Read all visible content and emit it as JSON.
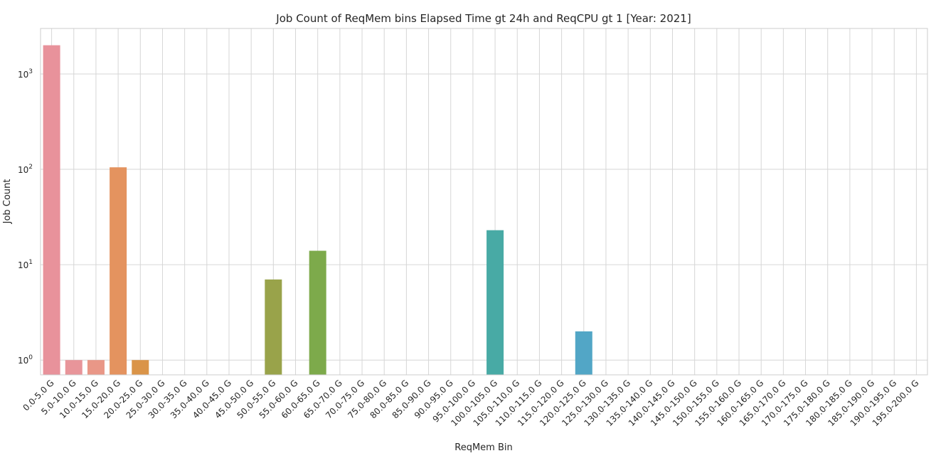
{
  "chart_data": {
    "type": "bar",
    "title": "Job Count of ReqMem bins Elapsed Time gt 24h and ReqCPU gt 1 [Year: 2021]",
    "xlabel": "ReqMem Bin",
    "ylabel": "Job Count",
    "yscale": "log",
    "ylim": [
      0.7,
      3000
    ],
    "yticks": [
      {
        "value": 1,
        "base": "10",
        "exp": "0"
      },
      {
        "value": 10,
        "base": "10",
        "exp": "1"
      },
      {
        "value": 100,
        "base": "10",
        "exp": "2"
      },
      {
        "value": 1000,
        "base": "10",
        "exp": "3"
      }
    ],
    "grid": true,
    "categories": [
      "0.0-5.0 G",
      "5.0-10.0 G",
      "10.0-15.0 G",
      "15.0-20.0 G",
      "20.0-25.0 G",
      "25.0-30.0 G",
      "30.0-35.0 G",
      "35.0-40.0 G",
      "40.0-45.0 G",
      "45.0-50.0 G",
      "50.0-55.0 G",
      "55.0-60.0 G",
      "60.0-65.0 G",
      "65.0-70.0 G",
      "70.0-75.0 G",
      "75.0-80.0 G",
      "80.0-85.0 G",
      "85.0-90.0 G",
      "90.0-95.0 G",
      "95.0-100.0 G",
      "100.0-105.0 G",
      "105.0-110.0 G",
      "110.0-115.0 G",
      "115.0-120.0 G",
      "120.0-125.0 G",
      "125.0-130.0 G",
      "130.0-135.0 G",
      "135.0-140.0 G",
      "140.0-145.0 G",
      "145.0-150.0 G",
      "150.0-155.0 G",
      "155.0-160.0 G",
      "160.0-165.0 G",
      "165.0-170.0 G",
      "170.0-175.0 G",
      "175.0-180.0 G",
      "180.0-185.0 G",
      "185.0-190.0 G",
      "190.0-195.0 G",
      "195.0-200.0 G"
    ],
    "values": [
      2000,
      1,
      1,
      105,
      1,
      0,
      0,
      0,
      0,
      0,
      7,
      0,
      14,
      0,
      0,
      0,
      0,
      0,
      0,
      0,
      23,
      0,
      0,
      0,
      2,
      0,
      0,
      0,
      0,
      0,
      0,
      0,
      0,
      0,
      0,
      0,
      0,
      0,
      0,
      0
    ],
    "colors": [
      "#e8929b",
      "#e8959a",
      "#e99787",
      "#e4935f",
      "#da9448",
      "#c59c43",
      "#b9a043",
      "#aca444",
      "#a0a847",
      "#97a94a",
      "#99a34a",
      "#8ca74a",
      "#7daa4b",
      "#6daf54",
      "#5aae68",
      "#53af7b",
      "#52ad8a",
      "#51ac95",
      "#50ab9f",
      "#4fa9a8",
      "#48aaa5",
      "#48a9ad",
      "#4ba7b6",
      "#4ea6bf",
      "#52a6c6",
      "#5aa3cf",
      "#659fd6",
      "#749bda",
      "#8496df",
      "#9591de",
      "#a48ddc",
      "#b28ad8",
      "#be87d3",
      "#c985cd",
      "#d384c4",
      "#dc86b8",
      "#e289aa",
      "#e78c9e",
      "#e98e96",
      "#e99093"
    ]
  }
}
